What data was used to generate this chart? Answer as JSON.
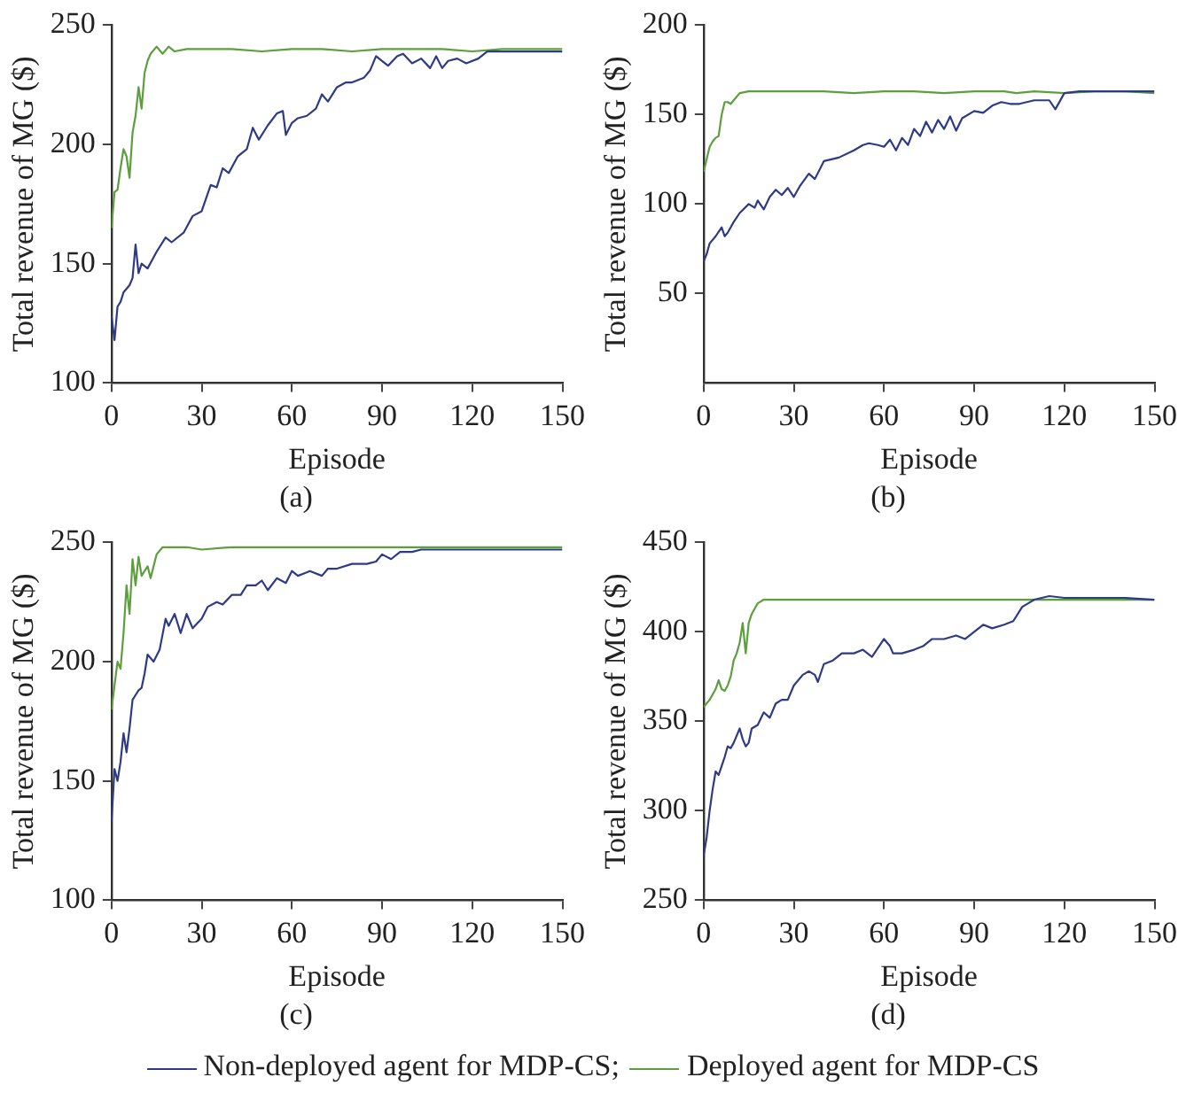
{
  "chart_data": [
    {
      "type": "line",
      "xlabel": "Episode",
      "ylabel": "Total revenue of MG ($)",
      "annotations": [
        "(a)"
      ],
      "xlim": [
        0,
        150
      ],
      "xticks": [
        0,
        30,
        60,
        90,
        120,
        150
      ],
      "ylim": [
        100,
        250
      ],
      "yticks": [
        100,
        150,
        200,
        250
      ],
      "grid": false,
      "legend": false,
      "marker": "none",
      "line_style": "solid",
      "series": [
        {
          "color": "#2e3a87",
          "x": [
            0,
            1,
            2,
            3,
            4,
            6,
            7,
            8,
            9,
            10,
            12,
            15,
            18,
            20,
            24,
            27,
            30,
            33,
            35,
            37,
            39,
            42,
            45,
            47,
            49,
            52,
            55,
            57,
            58,
            60,
            62,
            65,
            68,
            70,
            72,
            75,
            78,
            80,
            84,
            86,
            88,
            90,
            92,
            95,
            97,
            100,
            103,
            106,
            108,
            110,
            112,
            115,
            118,
            122,
            125,
            130,
            135,
            140,
            145,
            150
          ],
          "values": [
            128,
            118,
            132,
            134,
            138,
            141,
            144,
            158,
            146,
            150,
            148,
            155,
            161,
            159,
            163,
            170,
            172,
            183,
            182,
            190,
            188,
            195,
            198,
            207,
            202,
            208,
            213,
            214,
            204,
            209,
            211,
            212,
            215,
            221,
            218,
            224,
            226,
            226,
            228,
            231,
            237,
            235,
            233,
            237,
            238,
            234,
            236,
            232,
            237,
            232,
            235,
            236,
            234,
            236,
            239,
            239,
            239,
            239,
            239,
            239
          ]
        },
        {
          "color": "#5d9e3f",
          "x": [
            0,
            1,
            2,
            3,
            4,
            5,
            6,
            7,
            8,
            9,
            10,
            11,
            12,
            13,
            15,
            17,
            19,
            21,
            25,
            30,
            40,
            50,
            60,
            70,
            80,
            90,
            100,
            110,
            120,
            130,
            140,
            150
          ],
          "values": [
            165,
            180,
            181,
            190,
            198,
            195,
            186,
            205,
            212,
            224,
            215,
            230,
            235,
            238,
            241,
            238,
            241,
            239,
            240,
            240,
            240,
            239,
            240,
            240,
            239,
            240,
            240,
            240,
            239,
            240,
            240,
            240
          ]
        }
      ]
    },
    {
      "type": "line",
      "xlabel": "Episode",
      "ylabel": "Total revenue of MG ($)",
      "annotations": [
        "(b)"
      ],
      "xlim": [
        0,
        150
      ],
      "xticks": [
        0,
        30,
        60,
        90,
        120,
        150
      ],
      "ylim": [
        0,
        200
      ],
      "yticks": [
        50,
        100,
        150,
        200
      ],
      "grid": false,
      "legend": false,
      "marker": "none",
      "line_style": "solid",
      "series": [
        {
          "color": "#2e3a87",
          "x": [
            0,
            1,
            2,
            4,
            6,
            7,
            8,
            10,
            12,
            15,
            17,
            18,
            20,
            22,
            24,
            26,
            28,
            30,
            32,
            35,
            37,
            40,
            45,
            50,
            53,
            55,
            58,
            60,
            62,
            64,
            66,
            68,
            70,
            72,
            74,
            76,
            78,
            80,
            82,
            84,
            86,
            90,
            93,
            96,
            99,
            102,
            105,
            110,
            115,
            117,
            120,
            125,
            130,
            140,
            150
          ],
          "values": [
            68,
            72,
            78,
            82,
            87,
            82,
            84,
            90,
            95,
            100,
            98,
            102,
            97,
            104,
            108,
            105,
            109,
            104,
            110,
            117,
            114,
            124,
            126,
            130,
            133,
            134,
            133,
            132,
            136,
            130,
            137,
            133,
            142,
            138,
            146,
            140,
            147,
            142,
            149,
            141,
            148,
            152,
            151,
            155,
            157,
            156,
            156,
            158,
            158,
            153,
            162,
            163,
            163,
            163,
            163
          ]
        },
        {
          "color": "#5d9e3f",
          "x": [
            0,
            1,
            2,
            3,
            4,
            5,
            6,
            7,
            8,
            9,
            10,
            12,
            15,
            20,
            30,
            40,
            50,
            60,
            70,
            80,
            90,
            100,
            104,
            110,
            120,
            130,
            140,
            150
          ],
          "values": [
            118,
            125,
            132,
            135,
            137,
            138,
            150,
            157,
            157,
            156,
            158,
            162,
            163,
            163,
            163,
            163,
            162,
            163,
            163,
            162,
            163,
            163,
            162,
            163,
            162,
            163,
            163,
            162
          ]
        }
      ]
    },
    {
      "type": "line",
      "xlabel": "Episode",
      "ylabel": "Total revenue of MG ($)",
      "annotations": [
        "(c)"
      ],
      "xlim": [
        0,
        150
      ],
      "xticks": [
        0,
        30,
        60,
        90,
        120,
        150
      ],
      "ylim": [
        100,
        250
      ],
      "yticks": [
        100,
        150,
        200,
        250
      ],
      "grid": false,
      "legend": false,
      "marker": "none",
      "line_style": "solid",
      "series": [
        {
          "color": "#2e3a87",
          "x": [
            0,
            1,
            2,
            3,
            4,
            5,
            6,
            7,
            8,
            9,
            10,
            11,
            12,
            14,
            16,
            18,
            19,
            21,
            23,
            25,
            27,
            30,
            32,
            35,
            37,
            40,
            43,
            45,
            48,
            50,
            52,
            55,
            58,
            60,
            62,
            64,
            66,
            70,
            72,
            75,
            80,
            85,
            88,
            90,
            93,
            96,
            100,
            103,
            106,
            110,
            120,
            130,
            140,
            150
          ],
          "values": [
            133,
            155,
            150,
            158,
            170,
            162,
            172,
            184,
            186,
            188,
            189,
            195,
            203,
            200,
            205,
            218,
            215,
            220,
            212,
            220,
            214,
            218,
            223,
            225,
            224,
            228,
            228,
            232,
            232,
            234,
            230,
            235,
            233,
            238,
            236,
            237,
            238,
            236,
            239,
            239,
            241,
            241,
            242,
            245,
            243,
            246,
            246,
            247,
            247,
            247,
            247,
            247,
            247,
            247
          ]
        },
        {
          "color": "#5d9e3f",
          "x": [
            0,
            1,
            2,
            3,
            4,
            5,
            6,
            7,
            8,
            9,
            10,
            12,
            13,
            15,
            17,
            20,
            25,
            30,
            40,
            60,
            80,
            100,
            120,
            150
          ],
          "values": [
            180,
            190,
            200,
            197,
            212,
            232,
            220,
            243,
            232,
            244,
            236,
            240,
            235,
            245,
            248,
            248,
            248,
            247,
            248,
            248,
            248,
            248,
            248,
            248
          ]
        }
      ]
    },
    {
      "type": "line",
      "xlabel": "Episode",
      "ylabel": "Total revenue of MG ($)",
      "annotations": [
        "(d)"
      ],
      "xlim": [
        0,
        150
      ],
      "xticks": [
        0,
        30,
        60,
        90,
        120,
        150
      ],
      "ylim": [
        250,
        450
      ],
      "yticks": [
        250,
        300,
        350,
        400,
        450
      ],
      "grid": false,
      "legend": "bottom",
      "marker": "none",
      "line_style": "solid",
      "series": [
        {
          "name": "Non-deployed agent for MDP-CS;",
          "color": "#2e3a87",
          "x": [
            0,
            1,
            2,
            3,
            4,
            5,
            6,
            7,
            8,
            9,
            10,
            11,
            12,
            13,
            14,
            15,
            16,
            18,
            20,
            22,
            24,
            26,
            28,
            30,
            33,
            35,
            37,
            38,
            40,
            43,
            46,
            50,
            53,
            56,
            60,
            62,
            63,
            66,
            70,
            73,
            76,
            80,
            84,
            87,
            90,
            93,
            96,
            100,
            103,
            106,
            108,
            110,
            115,
            120,
            130,
            140,
            150
          ],
          "values": [
            275,
            285,
            300,
            312,
            322,
            320,
            325,
            330,
            336,
            335,
            338,
            342,
            346,
            340,
            336,
            338,
            346,
            348,
            355,
            352,
            360,
            362,
            362,
            370,
            376,
            378,
            376,
            372,
            382,
            384,
            388,
            388,
            390,
            386,
            396,
            392,
            388,
            388,
            390,
            392,
            396,
            396,
            398,
            396,
            400,
            404,
            402,
            404,
            406,
            414,
            416,
            418,
            420,
            419,
            419,
            419,
            418
          ]
        },
        {
          "name": "Deployed agent for MDP-CS",
          "color": "#5d9e3f",
          "x": [
            0,
            2,
            4,
            5,
            6,
            7,
            8,
            9,
            10,
            11,
            12,
            13,
            14,
            15,
            16,
            18,
            20,
            30,
            50,
            70,
            90,
            110,
            130,
            150
          ],
          "values": [
            358,
            362,
            368,
            373,
            368,
            367,
            370,
            375,
            384,
            388,
            394,
            405,
            388,
            405,
            410,
            416,
            418,
            418,
            418,
            418,
            418,
            418,
            418,
            418
          ]
        }
      ]
    }
  ]
}
